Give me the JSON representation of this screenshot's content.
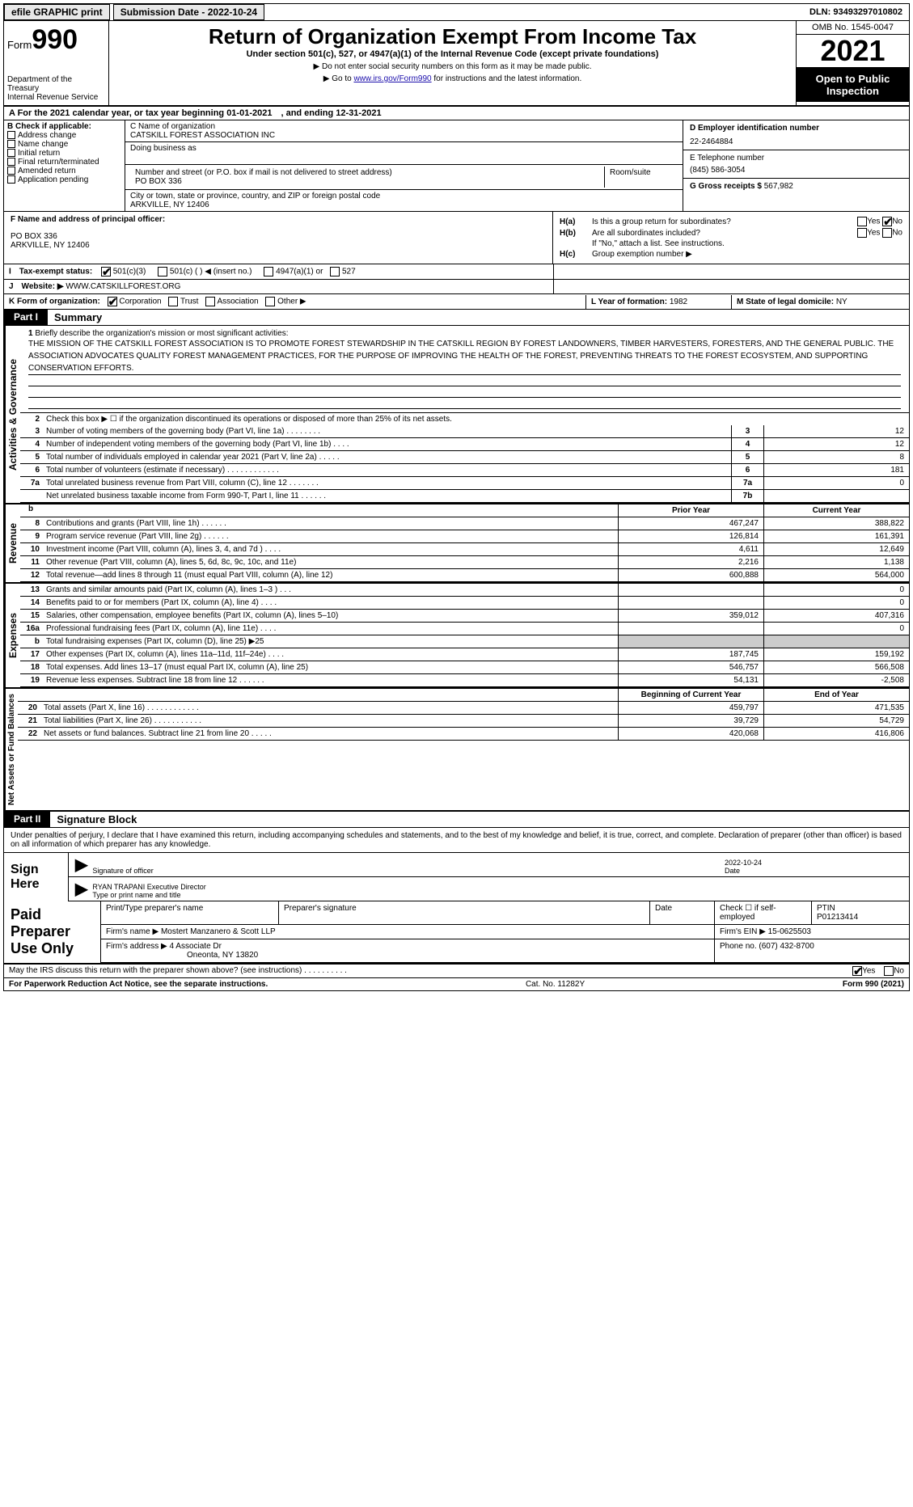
{
  "topbar": {
    "efile": "efile GRAPHIC print",
    "submission_label": "Submission Date - ",
    "submission_date": "2022-10-24",
    "dln_label": "DLN: ",
    "dln": "93493297010802"
  },
  "header": {
    "form_prefix": "Form",
    "form_number": "990",
    "dept": "Department of the Treasury\nInternal Revenue Service",
    "title": "Return of Organization Exempt From Income Tax",
    "subtitle": "Under section 501(c), 527, or 4947(a)(1) of the Internal Revenue Code (except private foundations)",
    "note1": "▶ Do not enter social security numbers on this form as it may be made public.",
    "note2_a": "▶ Go to ",
    "note2_link": "www.irs.gov/Form990",
    "note2_b": " for instructions and the latest information.",
    "omb": "OMB No. 1545-0047",
    "year": "2021",
    "open": "Open to Public Inspection"
  },
  "row_a": "A For the 2021 calendar year, or tax year beginning 01-01-2021 , and ending 12-31-2021",
  "col_b": {
    "label": "B Check if applicable:",
    "items": [
      "Address change",
      "Name change",
      "Initial return",
      "Final return/terminated",
      "Amended return",
      "Application pending"
    ]
  },
  "col_c": {
    "name_label": "C Name of organization",
    "name": "CATSKILL FOREST ASSOCIATION INC",
    "dba_label": "Doing business as",
    "dba": "",
    "street_label": "Number and street (or P.O. box if mail is not delivered to street address)",
    "street": "PO BOX 336",
    "room_label": "Room/suite",
    "city_label": "City or town, state or province, country, and ZIP or foreign postal code",
    "city": "ARKVILLE, NY  12406",
    "officer_label": "F Name and address of principal officer:",
    "officer_addr1": "PO BOX 336",
    "officer_addr2": "ARKVILLE, NY  12406"
  },
  "col_d": {
    "ein_label": "D Employer identification number",
    "ein": "22-2464884",
    "phone_label": "E Telephone number",
    "phone": "(845) 586-3054",
    "gross_label": "G Gross receipts $ ",
    "gross": "567,982"
  },
  "section_h": {
    "ha_label": "H(a)",
    "ha_text": "Is this a group return for subordinates?",
    "hb_label": "H(b)",
    "hb_text": "Are all subordinates included?",
    "hb_note": "If \"No,\" attach a list. See instructions.",
    "hc_label": "H(c)",
    "hc_text": "Group exemption number ▶",
    "yes": "Yes",
    "no": "No"
  },
  "row_i": {
    "label": "I Tax-exempt status:",
    "opt1": "501(c)(3)",
    "opt2": "501(c) (  ) ◀ (insert no.)",
    "opt3": "4947(a)(1) or",
    "opt4": "527"
  },
  "row_j": {
    "label": "J Website: ▶",
    "value": "WWW.CATSKILLFOREST.ORG"
  },
  "row_k": {
    "label": "K Form of organization:",
    "opts": [
      "Corporation",
      "Trust",
      "Association",
      "Other ▶"
    ],
    "l_label": "L Year of formation: ",
    "l_val": "1982",
    "m_label": "M State of legal domicile: ",
    "m_val": "NY"
  },
  "part1": {
    "tag": "Part I",
    "title": "Summary",
    "vtab_gov": "Activities & Governance",
    "vtab_rev": "Revenue",
    "vtab_exp": "Expenses",
    "vtab_net": "Net Assets or Fund Balances",
    "line1_label": "1",
    "line1_text": "Briefly describe the organization's mission or most significant activities:",
    "mission": "THE MISSION OF THE CATSKILL FOREST ASSOCIATION IS TO PROMOTE FOREST STEWARDSHIP IN THE CATSKILL REGION BY FOREST LANDOWNERS, TIMBER HARVESTERS, FORESTERS, AND THE GENERAL PUBLIC. THE ASSOCIATION ADVOCATES QUALITY FOREST MANAGEMENT PRACTICES, FOR THE PURPOSE OF IMPROVING THE HEALTH OF THE FOREST, PREVENTING THREATS TO THE FOREST ECOSYSTEM, AND SUPPORTING CONSERVATION EFFORTS.",
    "line2_num": "2",
    "line2": "Check this box ▶ ☐  if the organization discontinued its operations or disposed of more than 25% of its net assets.",
    "gov_lines": [
      {
        "n": "3",
        "d": "Number of voting members of the governing body (Part VI, line 1a)  .   .   .   .   .   .   .   .",
        "b": "3",
        "v": "12"
      },
      {
        "n": "4",
        "d": "Number of independent voting members of the governing body (Part VI, line 1b)   .   .   .   .",
        "b": "4",
        "v": "12"
      },
      {
        "n": "5",
        "d": "Total number of individuals employed in calendar year 2021 (Part V, line 2a)   .   .   .   .   .",
        "b": "5",
        "v": "8"
      },
      {
        "n": "6",
        "d": "Total number of volunteers (estimate if necessary)   .   .   .   .   .   .   .   .   .   .   .   .",
        "b": "6",
        "v": "181"
      },
      {
        "n": "7a",
        "d": "Total unrelated business revenue from Part VIII, column (C), line 12   .   .   .   .   .   .   .",
        "b": "7a",
        "v": "0"
      },
      {
        "n": "",
        "d": "Net unrelated business taxable income from Form 990-T, Part I, line 11   .   .   .   .   .   .",
        "b": "7b",
        "v": ""
      }
    ],
    "col_prior": "Prior Year",
    "col_current": "Current Year",
    "rev_lines": [
      {
        "n": "8",
        "d": "Contributions and grants (Part VIII, line 1h)   .   .   .   .   .   .",
        "p": "467,247",
        "c": "388,822"
      },
      {
        "n": "9",
        "d": "Program service revenue (Part VIII, line 2g)   .   .   .   .   .   .",
        "p": "126,814",
        "c": "161,391"
      },
      {
        "n": "10",
        "d": "Investment income (Part VIII, column (A), lines 3, 4, and 7d )   .   .   .   .",
        "p": "4,611",
        "c": "12,649"
      },
      {
        "n": "11",
        "d": "Other revenue (Part VIII, column (A), lines 5, 6d, 8c, 9c, 10c, and 11e)",
        "p": "2,216",
        "c": "1,138"
      },
      {
        "n": "12",
        "d": "Total revenue—add lines 8 through 11 (must equal Part VIII, column (A), line 12)",
        "p": "600,888",
        "c": "564,000"
      }
    ],
    "exp_lines": [
      {
        "n": "13",
        "d": "Grants and similar amounts paid (Part IX, column (A), lines 1–3 )   .   .   .",
        "p": "",
        "c": "0"
      },
      {
        "n": "14",
        "d": "Benefits paid to or for members (Part IX, column (A), line 4)   .   .   .   .",
        "p": "",
        "c": "0"
      },
      {
        "n": "15",
        "d": "Salaries, other compensation, employee benefits (Part IX, column (A), lines 5–10)",
        "p": "359,012",
        "c": "407,316"
      },
      {
        "n": "16a",
        "d": "Professional fundraising fees (Part IX, column (A), line 11e)   .   .   .   .",
        "p": "",
        "c": "0"
      },
      {
        "n": "b",
        "d": "Total fundraising expenses (Part IX, column (D), line 25) ▶25",
        "p": "GREY",
        "c": "GREY"
      },
      {
        "n": "17",
        "d": "Other expenses (Part IX, column (A), lines 11a–11d, 11f–24e)   .   .   .   .",
        "p": "187,745",
        "c": "159,192"
      },
      {
        "n": "18",
        "d": "Total expenses. Add lines 13–17 (must equal Part IX, column (A), line 25)",
        "p": "546,757",
        "c": "566,508"
      },
      {
        "n": "19",
        "d": "Revenue less expenses. Subtract line 18 from line 12   .   .   .   .   .   .",
        "p": "54,131",
        "c": "-2,508"
      }
    ],
    "col_begin": "Beginning of Current Year",
    "col_end": "End of Year",
    "net_lines": [
      {
        "n": "20",
        "d": "Total assets (Part X, line 16)   .   .   .   .   .   .   .   .   .   .   .   .",
        "p": "459,797",
        "c": "471,535"
      },
      {
        "n": "21",
        "d": "Total liabilities (Part X, line 26)   .   .   .   .   .   .   .   .   .   .   .",
        "p": "39,729",
        "c": "54,729"
      },
      {
        "n": "22",
        "d": "Net assets or fund balances. Subtract line 21 from line 20   .   .   .   .   .",
        "p": "420,068",
        "c": "416,806"
      }
    ]
  },
  "part2": {
    "tag": "Part II",
    "title": "Signature Block",
    "declare": "Under penalties of perjury, I declare that I have examined this return, including accompanying schedules and statements, and to the best of my knowledge and belief, it is true, correct, and complete. Declaration of preparer (other than officer) is based on all information of which preparer has any knowledge.",
    "sign_here": "Sign Here",
    "sig_officer_label": "Signature of officer",
    "date_label": "Date",
    "sig_date": "2022-10-24",
    "officer_name": "RYAN TRAPANI Executive Director",
    "type_label": "Type or print name and title",
    "paid": "Paid Preparer Use Only",
    "prep_name_label": "Print/Type preparer's name",
    "prep_sig_label": "Preparer's signature",
    "prep_date_label": "Date",
    "prep_check_label": "Check ☐ if self-employed",
    "ptin_label": "PTIN",
    "ptin": "P01213414",
    "firm_name_label": "Firm's name    ▶ ",
    "firm_name": "Mostert Manzanero & Scott LLP",
    "firm_ein_label": "Firm's EIN ▶ ",
    "firm_ein": "15-0625503",
    "firm_addr_label": "Firm's address ▶ ",
    "firm_addr": "4 Associate Dr",
    "firm_city": "Oneonta, NY  13820",
    "firm_phone_label": "Phone no. ",
    "firm_phone": "(607) 432-8700"
  },
  "footer": {
    "discuss": "May the IRS discuss this return with the preparer shown above? (see instructions)   .   .   .   .   .   .   .   .   .   .",
    "yes": "Yes",
    "no": "No",
    "paperwork": "For Paperwork Reduction Act Notice, see the separate instructions.",
    "cat": "Cat. No. 11282Y",
    "form": "Form 990 (2021)"
  }
}
